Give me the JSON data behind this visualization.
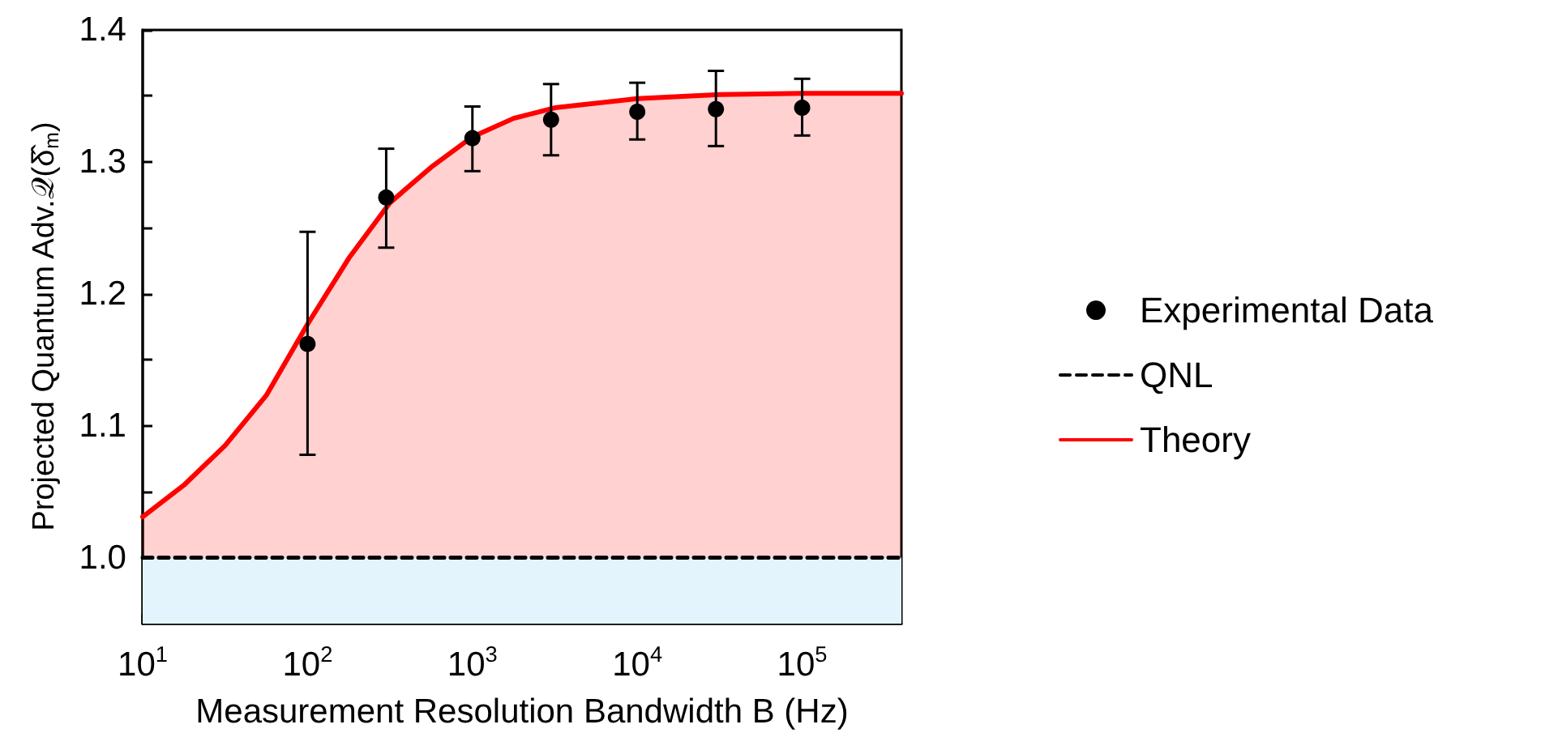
{
  "chart_data": {
    "type": "scatter",
    "xlabel": "Measurement Resolution Bandwidth B (Hz)",
    "ylabel": "Projected Quantum Adv.𝒬(δ̂$_{m}$)",
    "log": "x",
    "xlim": [
      10,
      400000
    ],
    "xticks": [
      {
        "value": 10,
        "label": "10$^{1}$"
      },
      {
        "value": 100,
        "label": "10$^{2}$"
      },
      {
        "value": 1000,
        "label": "10$^{3}$"
      },
      {
        "value": 10000,
        "label": "10$^{4}$"
      },
      {
        "value": 100000,
        "label": "10$^{5}$"
      }
    ],
    "ylim": [
      0.95,
      1.4
    ],
    "yticks": [
      {
        "value": 1.0,
        "label": "1.0"
      },
      1.1,
      1.2,
      1.3,
      1.4,
      {
        "value": 1.05,
        "label": null
      },
      {
        "value": 1.15,
        "label": null
      },
      {
        "value": 1.25,
        "label": null
      },
      {
        "value": 1.35,
        "label": null
      }
    ],
    "grid": false,
    "legend": "right",
    "series": [
      {
        "name": "Experimental Data",
        "type": "scatter",
        "marker": "circle",
        "color": "#000000",
        "x": [
          100,
          300,
          1000,
          3000,
          10000,
          30000,
          100000
        ],
        "values": [
          1.162,
          1.273,
          1.318,
          1.332,
          1.338,
          1.34,
          1.341
        ],
        "errors": [
          [
            1.078,
            1.247
          ],
          [
            1.235,
            1.31
          ],
          [
            1.293,
            1.342
          ],
          [
            1.305,
            1.359
          ],
          [
            1.317,
            1.36
          ],
          [
            1.312,
            1.369
          ],
          [
            1.32,
            1.363
          ]
        ]
      },
      {
        "name": "QNL",
        "type": "line",
        "line_style": "dashed",
        "color": "#000000",
        "x": [
          10,
          400000
        ],
        "values": [
          1.0,
          1.0
        ]
      },
      {
        "name": "Theory",
        "type": "area",
        "line_style": "solid",
        "color": "#ff0000",
        "x": [
          10,
          17.8,
          31.6,
          56.2,
          100,
          178,
          316,
          562,
          1000,
          1778,
          3162,
          10000,
          31623,
          100000,
          400000
        ],
        "values": [
          1.031,
          1.055,
          1.085,
          1.123,
          1.177,
          1.227,
          1.269,
          1.296,
          1.319,
          1.333,
          1.341,
          1.348,
          1.351,
          1.352,
          1.352
        ]
      }
    ],
    "bands": [
      {
        "axis": "y",
        "from": 0.95,
        "to": 1.0,
        "color": "#e3f4fc"
      }
    ]
  }
}
